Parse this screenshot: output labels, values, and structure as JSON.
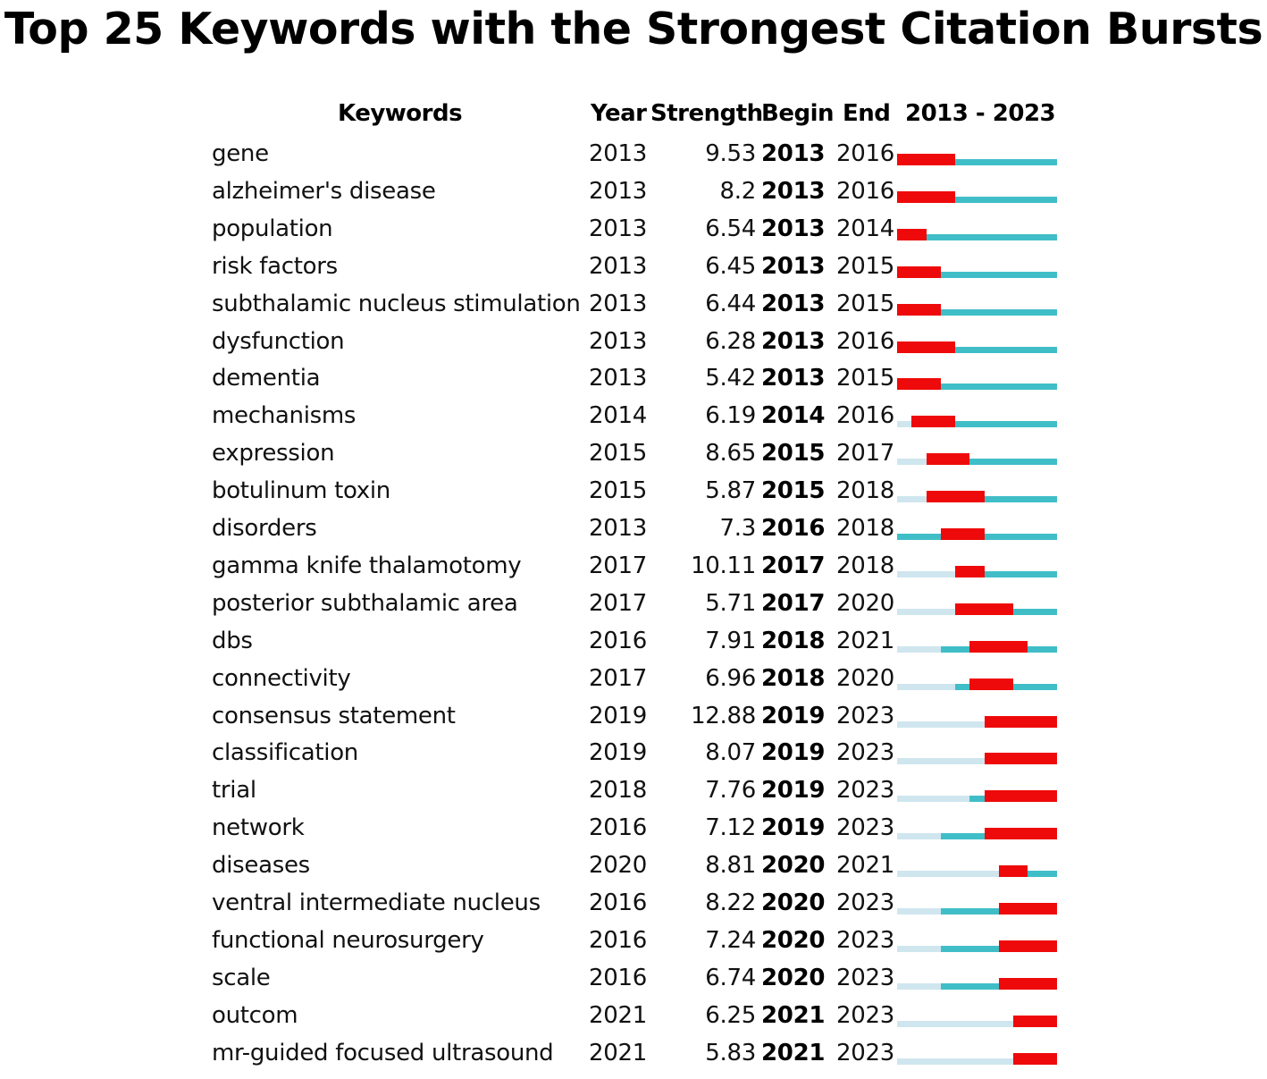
{
  "chart_data": {
    "type": "table",
    "title": "Top 25 Keywords with the Strongest Citation Bursts",
    "columns": {
      "keywords": "Keywords",
      "year": "Year",
      "strength": "Strength",
      "begin": "Begin",
      "end": "End",
      "range": "2013 - 2023"
    },
    "range_start": 2013,
    "range_end": 2023,
    "colors": {
      "burst": "#ee0a0a",
      "active": "#40bec8",
      "inactive": "#cfe6ef"
    },
    "rows": [
      {
        "keyword": "gene",
        "year": "2013",
        "strength": "9.53",
        "begin": "2013",
        "end": "2016"
      },
      {
        "keyword": "alzheimer's disease",
        "year": "2013",
        "strength": "8.2",
        "begin": "2013",
        "end": "2016"
      },
      {
        "keyword": "population",
        "year": "2013",
        "strength": "6.54",
        "begin": "2013",
        "end": "2014"
      },
      {
        "keyword": "risk factors",
        "year": "2013",
        "strength": "6.45",
        "begin": "2013",
        "end": "2015"
      },
      {
        "keyword": "subthalamic nucleus stimulation",
        "year": "2013",
        "strength": "6.44",
        "begin": "2013",
        "end": "2015"
      },
      {
        "keyword": "dysfunction",
        "year": "2013",
        "strength": "6.28",
        "begin": "2013",
        "end": "2016"
      },
      {
        "keyword": "dementia",
        "year": "2013",
        "strength": "5.42",
        "begin": "2013",
        "end": "2015"
      },
      {
        "keyword": "mechanisms",
        "year": "2014",
        "strength": "6.19",
        "begin": "2014",
        "end": "2016"
      },
      {
        "keyword": "expression",
        "year": "2015",
        "strength": "8.65",
        "begin": "2015",
        "end": "2017"
      },
      {
        "keyword": "botulinum toxin",
        "year": "2015",
        "strength": "5.87",
        "begin": "2015",
        "end": "2018"
      },
      {
        "keyword": "disorders",
        "year": "2013",
        "strength": "7.3",
        "begin": "2016",
        "end": "2018"
      },
      {
        "keyword": "gamma knife thalamotomy",
        "year": "2017",
        "strength": "10.11",
        "begin": "2017",
        "end": "2018"
      },
      {
        "keyword": "posterior subthalamic area",
        "year": "2017",
        "strength": "5.71",
        "begin": "2017",
        "end": "2020"
      },
      {
        "keyword": "dbs",
        "year": "2016",
        "strength": "7.91",
        "begin": "2018",
        "end": "2021"
      },
      {
        "keyword": "connectivity",
        "year": "2017",
        "strength": "6.96",
        "begin": "2018",
        "end": "2020"
      },
      {
        "keyword": "consensus statement",
        "year": "2019",
        "strength": "12.88",
        "begin": "2019",
        "end": "2023"
      },
      {
        "keyword": "classification",
        "year": "2019",
        "strength": "8.07",
        "begin": "2019",
        "end": "2023"
      },
      {
        "keyword": "trial",
        "year": "2018",
        "strength": "7.76",
        "begin": "2019",
        "end": "2023"
      },
      {
        "keyword": "network",
        "year": "2016",
        "strength": "7.12",
        "begin": "2019",
        "end": "2023"
      },
      {
        "keyword": "diseases",
        "year": "2020",
        "strength": "8.81",
        "begin": "2020",
        "end": "2021"
      },
      {
        "keyword": "ventral intermediate nucleus",
        "year": "2016",
        "strength": "8.22",
        "begin": "2020",
        "end": "2023"
      },
      {
        "keyword": "functional neurosurgery",
        "year": "2016",
        "strength": "7.24",
        "begin": "2020",
        "end": "2023"
      },
      {
        "keyword": "scale",
        "year": "2016",
        "strength": "6.74",
        "begin": "2020",
        "end": "2023"
      },
      {
        "keyword": "outcom",
        "year": "2021",
        "strength": "6.25",
        "begin": "2021",
        "end": "2023"
      },
      {
        "keyword": "mr-guided focused ultrasound",
        "year": "2021",
        "strength": "5.83",
        "begin": "2021",
        "end": "2023"
      }
    ]
  }
}
